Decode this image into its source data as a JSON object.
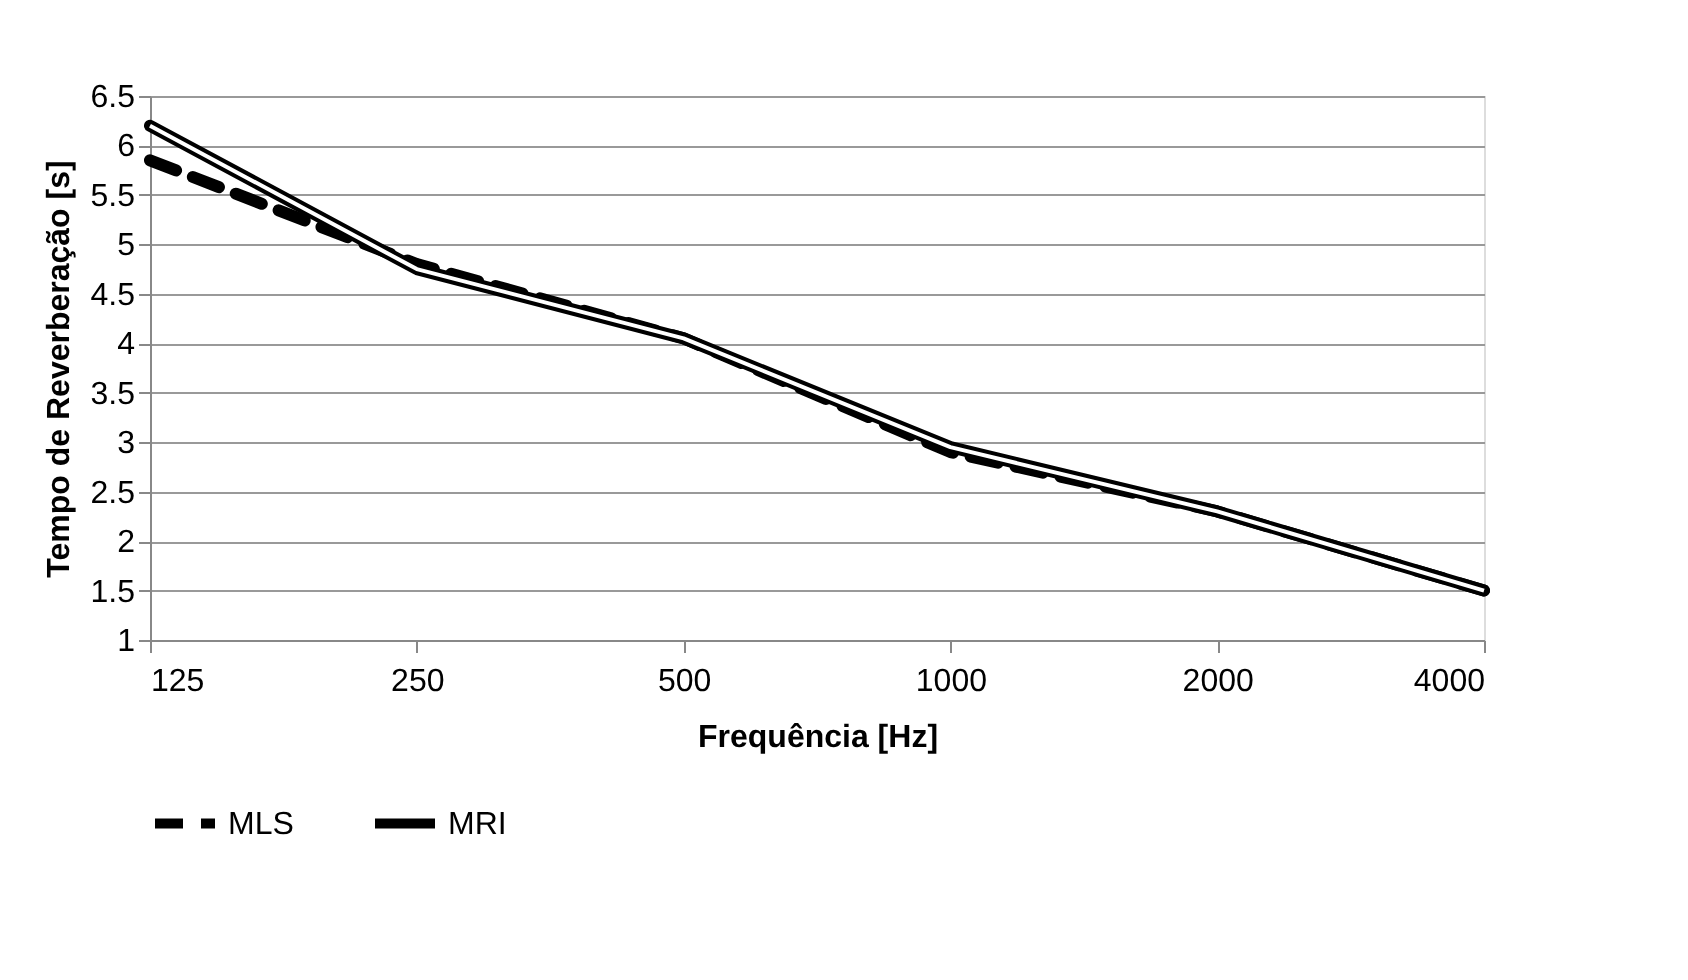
{
  "chart_data": {
    "type": "line",
    "xlabel": "Frequência [Hz]",
    "ylabel": "Tempo de Reverberação [s]",
    "categories": [
      "125",
      "250",
      "500",
      "1000",
      "2000",
      "4000"
    ],
    "series": [
      {
        "name": "MLS",
        "color": "#000000",
        "line_style": "dashed",
        "values": [
          5.85,
          4.8,
          4.05,
          2.9,
          2.3,
          1.5
        ]
      },
      {
        "name": "MRI",
        "color": "#000000",
        "line_style": "solid",
        "values": [
          6.2,
          4.75,
          4.05,
          2.95,
          2.3,
          1.5
        ]
      }
    ],
    "ylim": [
      1,
      6.5
    ],
    "yticks": [
      1,
      1.5,
      2,
      2.5,
      3,
      3.5,
      4,
      4.5,
      5,
      5.5,
      6,
      6.5
    ],
    "grid": "y",
    "legend": "bottom",
    "marker": "none"
  }
}
